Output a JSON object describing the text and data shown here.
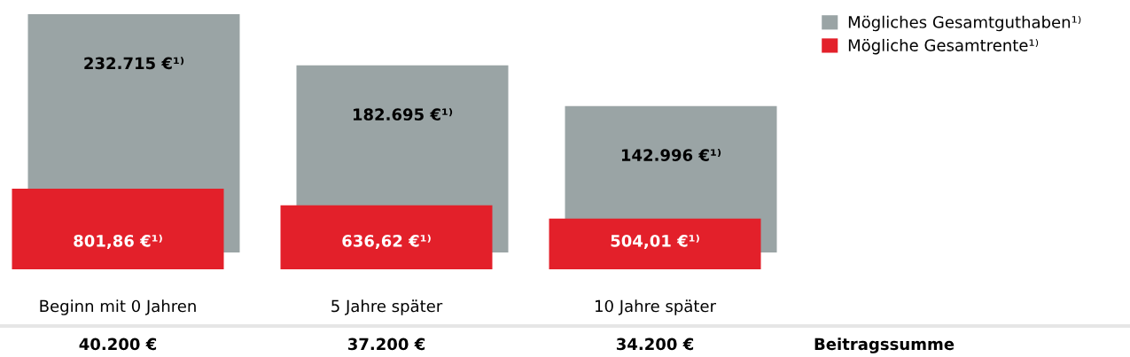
{
  "chart_data": {
    "type": "bar",
    "categories": [
      "Beginn mit 0 Jahren",
      "5 Jahre später",
      "10 Jahre später"
    ],
    "series": [
      {
        "name": "Mögliches Gesamtguthaben¹⁾",
        "color": "#9aa4a5",
        "values": [
          232715,
          182695,
          142996
        ],
        "value_labels": [
          "232.715 €¹⁾",
          "182.695 €¹⁾",
          "142.996 €¹⁾"
        ]
      },
      {
        "name": "Mögliche Gesamtrente¹⁾",
        "color": "#e3202a",
        "axis": "y2",
        "values": [
          801.86,
          636.62,
          504.01
        ],
        "value_labels": [
          "801,86 €¹⁾",
          "636,62 €¹⁾",
          "504,01 €¹⁾"
        ]
      }
    ],
    "legend": "top right",
    "annotations": [
      "40.200 €",
      "37.200 €",
      "34.200 €",
      "Beitragssumme"
    ]
  }
}
